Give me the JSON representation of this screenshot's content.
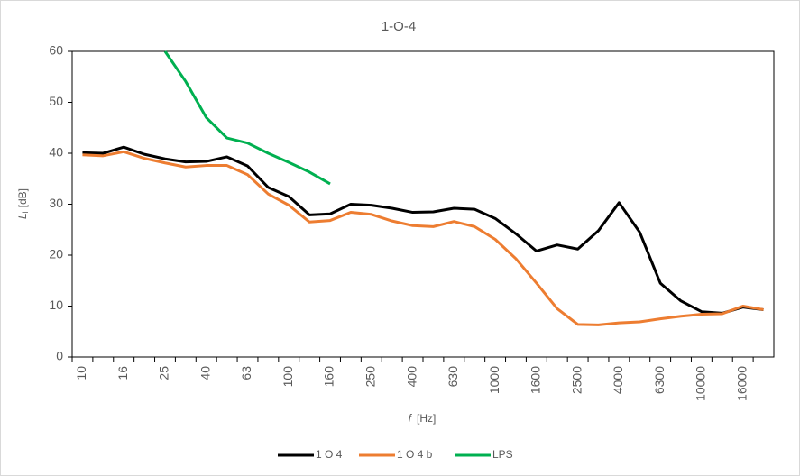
{
  "chart_data": {
    "type": "line",
    "title": "1-O-4",
    "x_label": {
      "symbol": "f",
      "unit": "[Hz]"
    },
    "y_label": {
      "symbol": "L",
      "subscript": "i",
      "unit": "[dB]"
    },
    "categories": [
      "10",
      null,
      "16",
      null,
      "25",
      null,
      "40",
      null,
      "63",
      null,
      "100",
      null,
      "160",
      null,
      "250",
      null,
      "400",
      null,
      "630",
      null,
      "1000",
      null,
      "1600",
      null,
      "2500",
      null,
      "4000",
      null,
      "6300",
      null,
      "10000",
      null,
      "16000",
      null
    ],
    "ylim": [
      0,
      60
    ],
    "yticks": [
      0,
      10,
      20,
      30,
      40,
      50,
      60
    ],
    "grid": false,
    "legend": "bottom",
    "series": [
      {
        "name": "1 O 4",
        "color": "#000000",
        "values": [
          40.1,
          40,
          41.2,
          39.8,
          38.9,
          38.3,
          38.4,
          39.3,
          37.5,
          33.3,
          31.5,
          27.9,
          28.1,
          30,
          29.8,
          29.2,
          28.4,
          28.5,
          29.2,
          29,
          27.2,
          24.2,
          20.8,
          22,
          21.2,
          24.8,
          30.3,
          24.5,
          14.5,
          11,
          8.9,
          8.6,
          9.8,
          9.3
        ]
      },
      {
        "name": "1 O 4 b",
        "color": "#ed7d31",
        "values": [
          39.7,
          39.5,
          40.3,
          39,
          38.1,
          37.3,
          37.6,
          37.6,
          35.8,
          32,
          29.8,
          26.5,
          26.8,
          28.4,
          28,
          26.7,
          25.8,
          25.6,
          26.6,
          25.6,
          23.1,
          19.3,
          14.5,
          9.5,
          6.4,
          6.3,
          6.7,
          6.9,
          7.5,
          8,
          8.4,
          8.5,
          10,
          9.3
        ]
      },
      {
        "name": "LPS",
        "color": "#00b050",
        "values": [
          null,
          null,
          null,
          null,
          60,
          54.1,
          47,
          43,
          42,
          40,
          38.2,
          36.3,
          34,
          null,
          null,
          null,
          null,
          null,
          null,
          null,
          null,
          null,
          null,
          null,
          null,
          null,
          null,
          null,
          null,
          null,
          null,
          null,
          null,
          null
        ]
      }
    ]
  }
}
